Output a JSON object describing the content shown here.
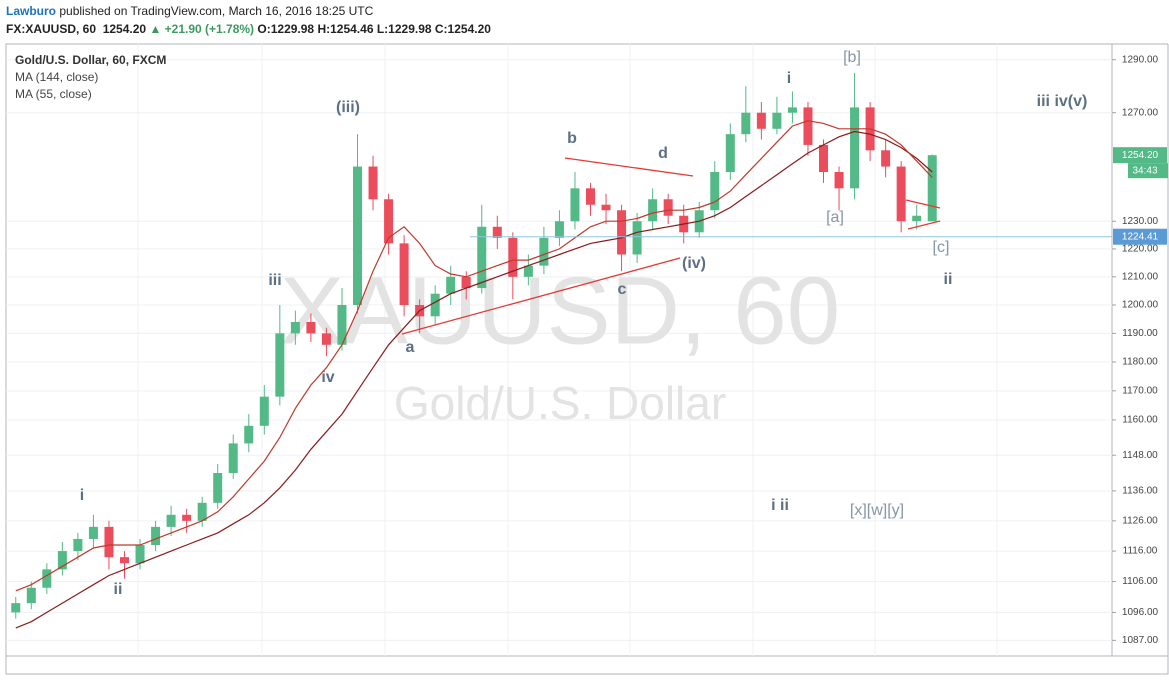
{
  "header": {
    "publisher": "Lawburo",
    "published": "published on TradingView.com, March 16, 2016 18:25 UTC",
    "symbol": "FX:XAUUSD, 60",
    "price": "1254.20",
    "change": "▲ +21.90 (+1.78%)",
    "open": "O:1229.98",
    "high": "H:1254.46",
    "low": "L:1229.98",
    "close": "C:1254.20"
  },
  "chart_data": {
    "type": "candlestick",
    "title": "Gold/U.S. Dollar, 60, FXCM",
    "watermark": "XAUUSD, 60",
    "watermark_sub": "Gold/U.S. Dollar",
    "log": true,
    "grid": true,
    "up_color": "#53b987",
    "down_color": "#eb4d5c",
    "open": [
      1096,
      1099,
      1104,
      1110,
      1116,
      1120,
      1124,
      1114,
      1112,
      1118,
      1124,
      1128,
      1126,
      1132,
      1142,
      1152,
      1158,
      1168,
      1190,
      1194,
      1190,
      1186,
      1200,
      1250,
      1238,
      1222,
      1200,
      1196,
      1204,
      1210,
      1206,
      1228,
      1224,
      1210,
      1214,
      1224,
      1230,
      1242,
      1236,
      1234,
      1218,
      1230,
      1238,
      1232,
      1226,
      1234,
      1248,
      1262,
      1270,
      1264,
      1270,
      1272,
      1258,
      1248,
      1242,
      1272,
      1256,
      1250,
      1230,
      1229.98
    ],
    "high": [
      1101,
      1106,
      1112,
      1119,
      1122,
      1128,
      1126,
      1116,
      1120,
      1126,
      1131,
      1130,
      1134,
      1145,
      1155,
      1162,
      1172,
      1200,
      1198,
      1197,
      1192,
      1206,
      1262,
      1254,
      1240,
      1225,
      1202,
      1207,
      1214,
      1212,
      1236,
      1232,
      1226,
      1218,
      1228,
      1234,
      1248,
      1244,
      1240,
      1236,
      1233,
      1242,
      1240,
      1236,
      1237,
      1252,
      1266,
      1280,
      1274,
      1276,
      1278,
      1274,
      1260,
      1250,
      1285,
      1274,
      1260,
      1252,
      1236,
      1254.46
    ],
    "low": [
      1094,
      1097,
      1102,
      1108,
      1113,
      1117,
      1110,
      1107,
      1110,
      1116,
      1121,
      1122,
      1124,
      1130,
      1140,
      1149,
      1155,
      1165,
      1186,
      1187,
      1182,
      1184,
      1197,
      1234,
      1218,
      1196,
      1190,
      1193,
      1200,
      1202,
      1204,
      1220,
      1202,
      1207,
      1211,
      1221,
      1227,
      1232,
      1229,
      1212,
      1215,
      1227,
      1229,
      1222,
      1224,
      1231,
      1245,
      1259,
      1260,
      1262,
      1266,
      1254,
      1244,
      1234,
      1238,
      1252,
      1246,
      1226,
      1227,
      1229.98
    ],
    "close": [
      1099,
      1104,
      1110,
      1116,
      1120,
      1124,
      1114,
      1112,
      1118,
      1124,
      1128,
      1126,
      1132,
      1142,
      1152,
      1158,
      1168,
      1190,
      1194,
      1190,
      1186,
      1200,
      1250,
      1238,
      1222,
      1200,
      1196,
      1204,
      1210,
      1206,
      1228,
      1224,
      1210,
      1214,
      1224,
      1230,
      1242,
      1236,
      1234,
      1218,
      1230,
      1238,
      1232,
      1226,
      1234,
      1248,
      1262,
      1270,
      1264,
      1270,
      1272,
      1258,
      1248,
      1242,
      1272,
      1256,
      1250,
      1230,
      1232,
      1254.2
    ],
    "series": [
      {
        "name": "MA (144, close)",
        "color": "#8b1a1a",
        "values": [
          1091,
          1093,
          1096,
          1099,
          1102,
          1105,
          1108,
          1110,
          1112,
          1114,
          1116,
          1118,
          1120,
          1122,
          1125,
          1128,
          1132,
          1137,
          1143,
          1150,
          1156,
          1162,
          1170,
          1178,
          1186,
          1192,
          1198,
          1201,
          1204,
          1206,
          1208,
          1210,
          1212,
          1214,
          1216,
          1218,
          1220,
          1222,
          1223,
          1224,
          1226,
          1227,
          1228,
          1229,
          1230,
          1232,
          1235,
          1239,
          1243,
          1247,
          1251,
          1255,
          1258,
          1261,
          1263,
          1262,
          1260,
          1257,
          1253,
          1248
        ]
      },
      {
        "name": "MA (55, close)",
        "color": "#c0392b",
        "values": [
          1103,
          1105,
          1108,
          1111,
          1114,
          1117,
          1118,
          1118,
          1118,
          1120,
          1122,
          1124,
          1126,
          1129,
          1134,
          1140,
          1146,
          1154,
          1164,
          1172,
          1178,
          1186,
          1198,
          1212,
          1224,
          1228,
          1222,
          1214,
          1211,
          1210,
          1212,
          1214,
          1216,
          1216,
          1218,
          1220,
          1224,
          1228,
          1230,
          1230,
          1231,
          1233,
          1234,
          1234,
          1235,
          1237,
          1241,
          1247,
          1253,
          1259,
          1265,
          1267,
          1266,
          1264,
          1264,
          1264,
          1262,
          1258,
          1252,
          1246
        ]
      }
    ],
    "ylim": [
      1082,
      1296
    ],
    "yticks": [
      {
        "value": 1087,
        "label": "1087.00"
      },
      {
        "value": 1096,
        "label": "1096.00"
      },
      {
        "value": 1106,
        "label": "1106.00"
      },
      {
        "value": 1116,
        "label": "1116.00"
      },
      {
        "value": 1126,
        "label": "1126.00"
      },
      {
        "value": 1136,
        "label": "1136.00"
      },
      {
        "value": 1148,
        "label": "1148.00"
      },
      {
        "value": 1160,
        "label": "1160.00"
      },
      {
        "value": 1170,
        "label": "1170.00"
      },
      {
        "value": 1180,
        "label": "1180.00"
      },
      {
        "value": 1190,
        "label": "1190.00"
      },
      {
        "value": 1200,
        "label": "1200.00"
      },
      {
        "value": 1210,
        "label": "1210.00"
      },
      {
        "value": 1220,
        "label": "1220.00"
      },
      {
        "value": 1230,
        "label": "1230.00"
      },
      {
        "value": 1270,
        "label": "1270.00"
      },
      {
        "value": 1290,
        "label": "1290.00"
      }
    ],
    "price_line": {
      "value": 1224.41,
      "label": "1224.41"
    },
    "last_price": {
      "value": 1254.2,
      "label": "1254.20"
    },
    "countdown": "34:43",
    "annotations": [
      "i",
      "ii",
      "iii",
      "iv",
      "(iii)",
      "a",
      "b",
      "c",
      "d",
      "(iv)",
      "i",
      "[b]",
      "[a]",
      "[c]",
      "ii",
      "iii iv(v)",
      "i ii",
      "[x][w][y]"
    ]
  }
}
